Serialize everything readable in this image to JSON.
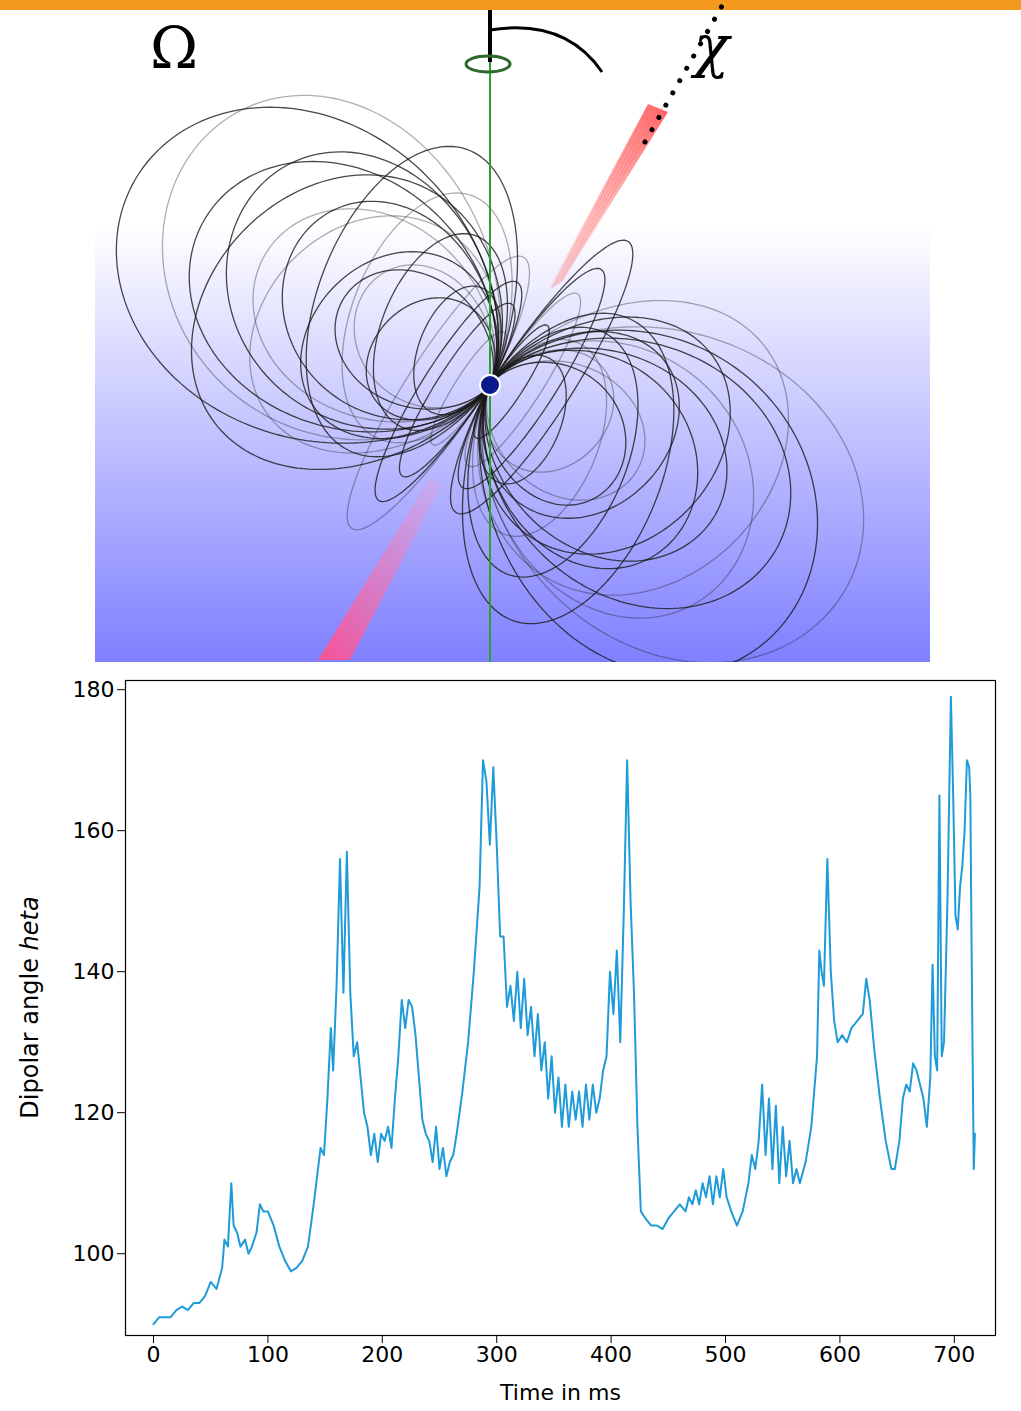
{
  "diagram": {
    "rotation_label": "Ω",
    "angle_label": "χ"
  },
  "chart_data": {
    "type": "line",
    "x_label": "Time in ms",
    "y_label": "Dipolar angle heta",
    "xlim": [
      -24.5,
      736
    ],
    "ylim": [
      88.4,
      181.3
    ],
    "xticks": [
      0,
      100,
      200,
      300,
      400,
      500,
      600,
      700
    ],
    "yticks": [
      100,
      120,
      140,
      160,
      180
    ],
    "color": "#1f9bd7",
    "x": [
      0,
      5,
      10,
      15,
      20,
      25,
      30,
      35,
      40,
      45,
      50,
      55,
      60,
      62,
      65,
      68,
      70,
      73,
      76,
      80,
      83,
      86,
      90,
      93,
      96,
      100,
      105,
      110,
      115,
      120,
      125,
      130,
      135,
      140,
      143,
      146,
      149,
      152,
      155,
      157,
      160,
      163,
      166,
      169,
      172,
      175,
      178,
      181,
      184,
      187,
      190,
      193,
      196,
      199,
      202,
      205,
      208,
      211,
      214,
      217,
      220,
      223,
      226,
      229,
      232,
      235,
      238,
      241,
      244,
      247,
      250,
      253,
      256,
      259,
      262,
      265,
      270,
      275,
      280,
      285,
      288,
      291,
      294,
      297,
      300,
      303,
      306,
      309,
      312,
      315,
      318,
      321,
      324,
      327,
      330,
      333,
      336,
      339,
      342,
      345,
      348,
      351,
      354,
      357,
      360,
      363,
      366,
      369,
      372,
      375,
      378,
      381,
      384,
      387,
      390,
      393,
      396,
      399,
      402,
      405,
      408,
      411,
      414,
      417,
      420,
      423,
      426,
      430,
      435,
      440,
      445,
      450,
      455,
      460,
      465,
      468,
      471,
      474,
      477,
      480,
      483,
      486,
      489,
      492,
      495,
      498,
      501,
      505,
      510,
      515,
      520,
      523,
      526,
      529,
      532,
      535,
      538,
      541,
      544,
      547,
      550,
      553,
      556,
      559,
      562,
      565,
      570,
      575,
      578,
      580,
      582,
      584,
      586,
      589,
      592,
      595,
      598,
      602,
      606,
      610,
      615,
      620,
      623,
      626,
      630,
      635,
      640,
      645,
      648,
      652,
      655,
      658,
      661,
      664,
      667,
      670,
      673,
      676,
      679,
      681,
      683,
      685,
      687,
      689,
      691,
      694,
      697,
      699,
      701,
      703,
      705,
      707,
      709,
      711,
      713,
      714,
      715,
      716,
      717,
      718
    ],
    "values": [
      90,
      91,
      91,
      91,
      92,
      92.5,
      92,
      93,
      93,
      94,
      96,
      95,
      98,
      102,
      101,
      110,
      104,
      103,
      101,
      102,
      100,
      101,
      103,
      107,
      106,
      106,
      104,
      101,
      99,
      97.5,
      98,
      99,
      101,
      107,
      111,
      115,
      114,
      122,
      132,
      126,
      138,
      156,
      137,
      157,
      137,
      128,
      130,
      125,
      120,
      118,
      114,
      117,
      113,
      117,
      116,
      118,
      115,
      122,
      128,
      136,
      132,
      136,
      135,
      131,
      125,
      119,
      117,
      116,
      113,
      118,
      112,
      115,
      111,
      113,
      114,
      117,
      123,
      130,
      140,
      152,
      170,
      167,
      158,
      169,
      158,
      145,
      145,
      135,
      138,
      133,
      140,
      132,
      139,
      131,
      135,
      128,
      134,
      126,
      130,
      122,
      128,
      120,
      125,
      118,
      124,
      118,
      123,
      119,
      123,
      118,
      124,
      119,
      124,
      120,
      122,
      126,
      128,
      140,
      134,
      143,
      130,
      148,
      170,
      150,
      137,
      118,
      106,
      105,
      104,
      104,
      103.5,
      105,
      106,
      107,
      106,
      108,
      107,
      109,
      107,
      110,
      108,
      111,
      107,
      111,
      108,
      112,
      108,
      106,
      104,
      106,
      110,
      114,
      112,
      116,
      124,
      114,
      122,
      112,
      121,
      110,
      118,
      111,
      116,
      110,
      112,
      110,
      113,
      118,
      124,
      128,
      143,
      140,
      138,
      156,
      140,
      133,
      130,
      131,
      130,
      132,
      133,
      134,
      139,
      136,
      129,
      122,
      116,
      112,
      112,
      116,
      122,
      124,
      123,
      127,
      126,
      124,
      122,
      118,
      125,
      141,
      128,
      126,
      165,
      128,
      130,
      150,
      179,
      165,
      148,
      146,
      152,
      155,
      160,
      170,
      169,
      165,
      145,
      128,
      112,
      117
    ]
  }
}
